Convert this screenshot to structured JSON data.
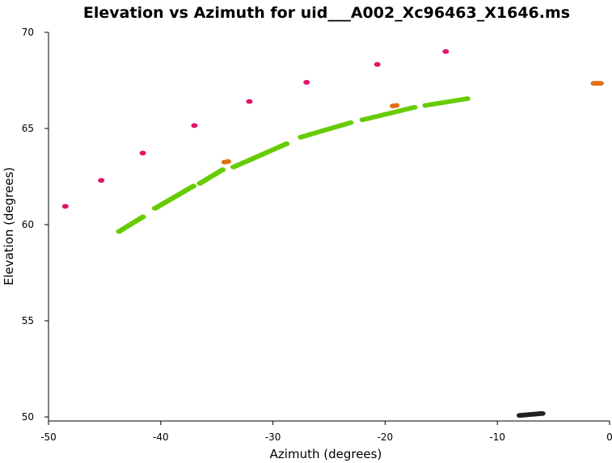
{
  "chart_data": {
    "type": "scatter",
    "title": "Elevation vs Azimuth for uid___A002_Xc96463_X1646.ms",
    "xlabel": "Azimuth (degrees)",
    "ylabel": "Elevation (degrees)",
    "xlim": [
      -50,
      0
    ],
    "ylim": [
      50,
      70
    ],
    "xticks": [
      -50,
      -40,
      -30,
      -20,
      -10,
      0
    ],
    "yticks": [
      50,
      55,
      60,
      65,
      70
    ],
    "grid": false,
    "series": [
      {
        "color": "#e0146a",
        "points": [
          [
            -48.5,
            60.95
          ],
          [
            -45.3,
            62.3
          ],
          [
            -41.6,
            63.72
          ],
          [
            -37.0,
            65.15
          ],
          [
            -32.1,
            66.4
          ],
          [
            -27.0,
            67.4
          ],
          [
            -20.7,
            68.33
          ],
          [
            -14.6,
            69.0
          ]
        ]
      },
      {
        "color": "#e07010",
        "points": [
          [
            -34.3,
            63.25
          ],
          [
            -34.0,
            63.28
          ],
          [
            -19.3,
            66.17
          ],
          [
            -19.0,
            66.2
          ],
          [
            -1.4,
            67.35
          ],
          [
            -1.2,
            67.35
          ],
          [
            -1.0,
            67.35
          ],
          [
            -0.8,
            67.35
          ]
        ]
      },
      {
        "color": "#66cc00",
        "segments": [
          {
            "from": [
              -43.7,
              59.65
            ],
            "to": [
              -41.6,
              60.4
            ],
            "n": 10
          },
          {
            "from": [
              -40.5,
              60.85
            ],
            "to": [
              -37.1,
              62.0
            ],
            "n": 16
          },
          {
            "from": [
              -36.5,
              62.15
            ],
            "to": [
              -34.5,
              62.85
            ],
            "n": 10
          },
          {
            "from": [
              -33.5,
              63.0
            ],
            "to": [
              -28.8,
              64.2
            ],
            "n": 20
          },
          {
            "from": [
              -27.5,
              64.55
            ],
            "to": [
              -23.1,
              65.3
            ],
            "n": 18
          },
          {
            "from": [
              -22.0,
              65.45
            ],
            "to": [
              -17.4,
              66.1
            ],
            "n": 18
          },
          {
            "from": [
              -16.4,
              66.2
            ],
            "to": [
              -12.7,
              66.55
            ],
            "n": 14
          }
        ]
      },
      {
        "color": "#222222",
        "segments": [
          {
            "from": [
              -8.0,
              50.08
            ],
            "to": [
              -6.0,
              50.18
            ],
            "n": 12
          }
        ]
      }
    ]
  }
}
